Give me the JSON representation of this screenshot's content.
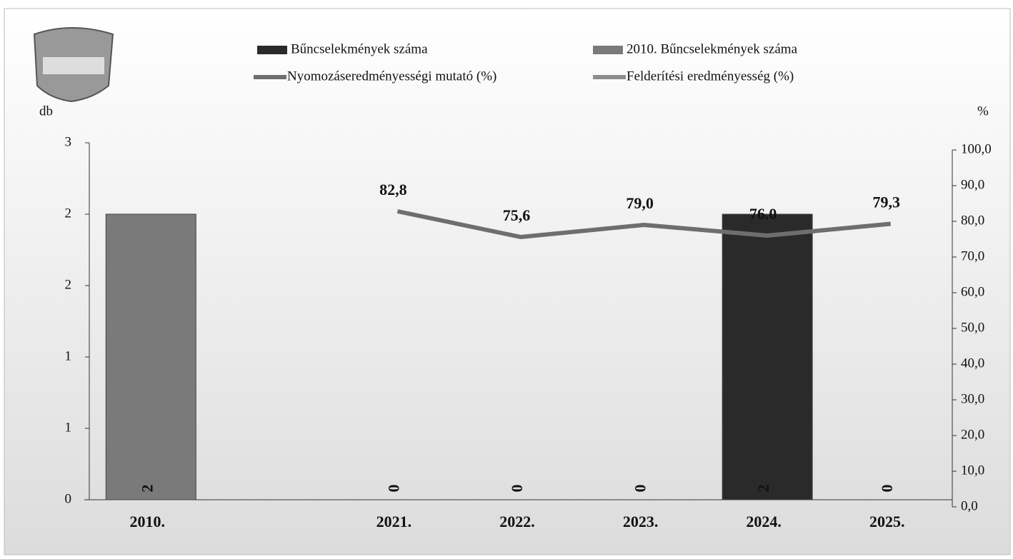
{
  "chart_data": {
    "type": "bar-line",
    "y_label": "db",
    "y2_label": "%",
    "categories": [
      "2010.",
      null,
      "2021.",
      "2022.",
      "2023.",
      "2024.",
      "2025."
    ],
    "series": [
      {
        "name": "Bűncselekmények száma",
        "type": "bar",
        "color": "#2a2a2a",
        "values": [
          null,
          null,
          0,
          0,
          0,
          2,
          0
        ]
      },
      {
        "name": "2010. Bűncselekmények száma",
        "type": "bar",
        "color": "#7a7a7a",
        "values": [
          2,
          null,
          null,
          null,
          null,
          null,
          null
        ]
      },
      {
        "name": "Nyomozáseredményességi mutató (%)",
        "type": "line",
        "axis": "y2",
        "color": "#6e6e6e",
        "values": [
          null,
          null,
          82.8,
          75.6,
          79.0,
          76.0,
          79.3
        ],
        "value_labels": [
          null,
          null,
          "82,8",
          "75,6",
          "79,0",
          "76.0",
          "79,3"
        ]
      },
      {
        "name": "Felderítési eredményesség (%)",
        "type": "line",
        "axis": "y2",
        "color": "#8c8c8c",
        "values": [
          null,
          null,
          null,
          null,
          null,
          null,
          null
        ]
      }
    ],
    "ylim": [
      0,
      2.5
    ],
    "yticks": [
      0,
      {
        "value": 0.5,
        "label": "1"
      },
      1,
      {
        "value": 1.5,
        "label": "2"
      },
      2,
      {
        "value": 2.5,
        "label": "3"
      }
    ],
    "y2lim": [
      0,
      100
    ],
    "y2ticks": [
      {
        "value": 0,
        "label": "0,0"
      },
      {
        "value": 10,
        "label": "10,0"
      },
      {
        "value": 20,
        "label": "20,0"
      },
      {
        "value": 30,
        "label": "30,0"
      },
      {
        "value": 40,
        "label": "40,0"
      },
      {
        "value": 50,
        "label": "50,0"
      },
      {
        "value": 60,
        "label": "60,0"
      },
      {
        "value": 70,
        "label": "70,0"
      },
      {
        "value": 80,
        "label": "80,0"
      },
      {
        "value": 90,
        "label": "90,0"
      },
      {
        "value": 100,
        "label": "100,0"
      }
    ]
  }
}
